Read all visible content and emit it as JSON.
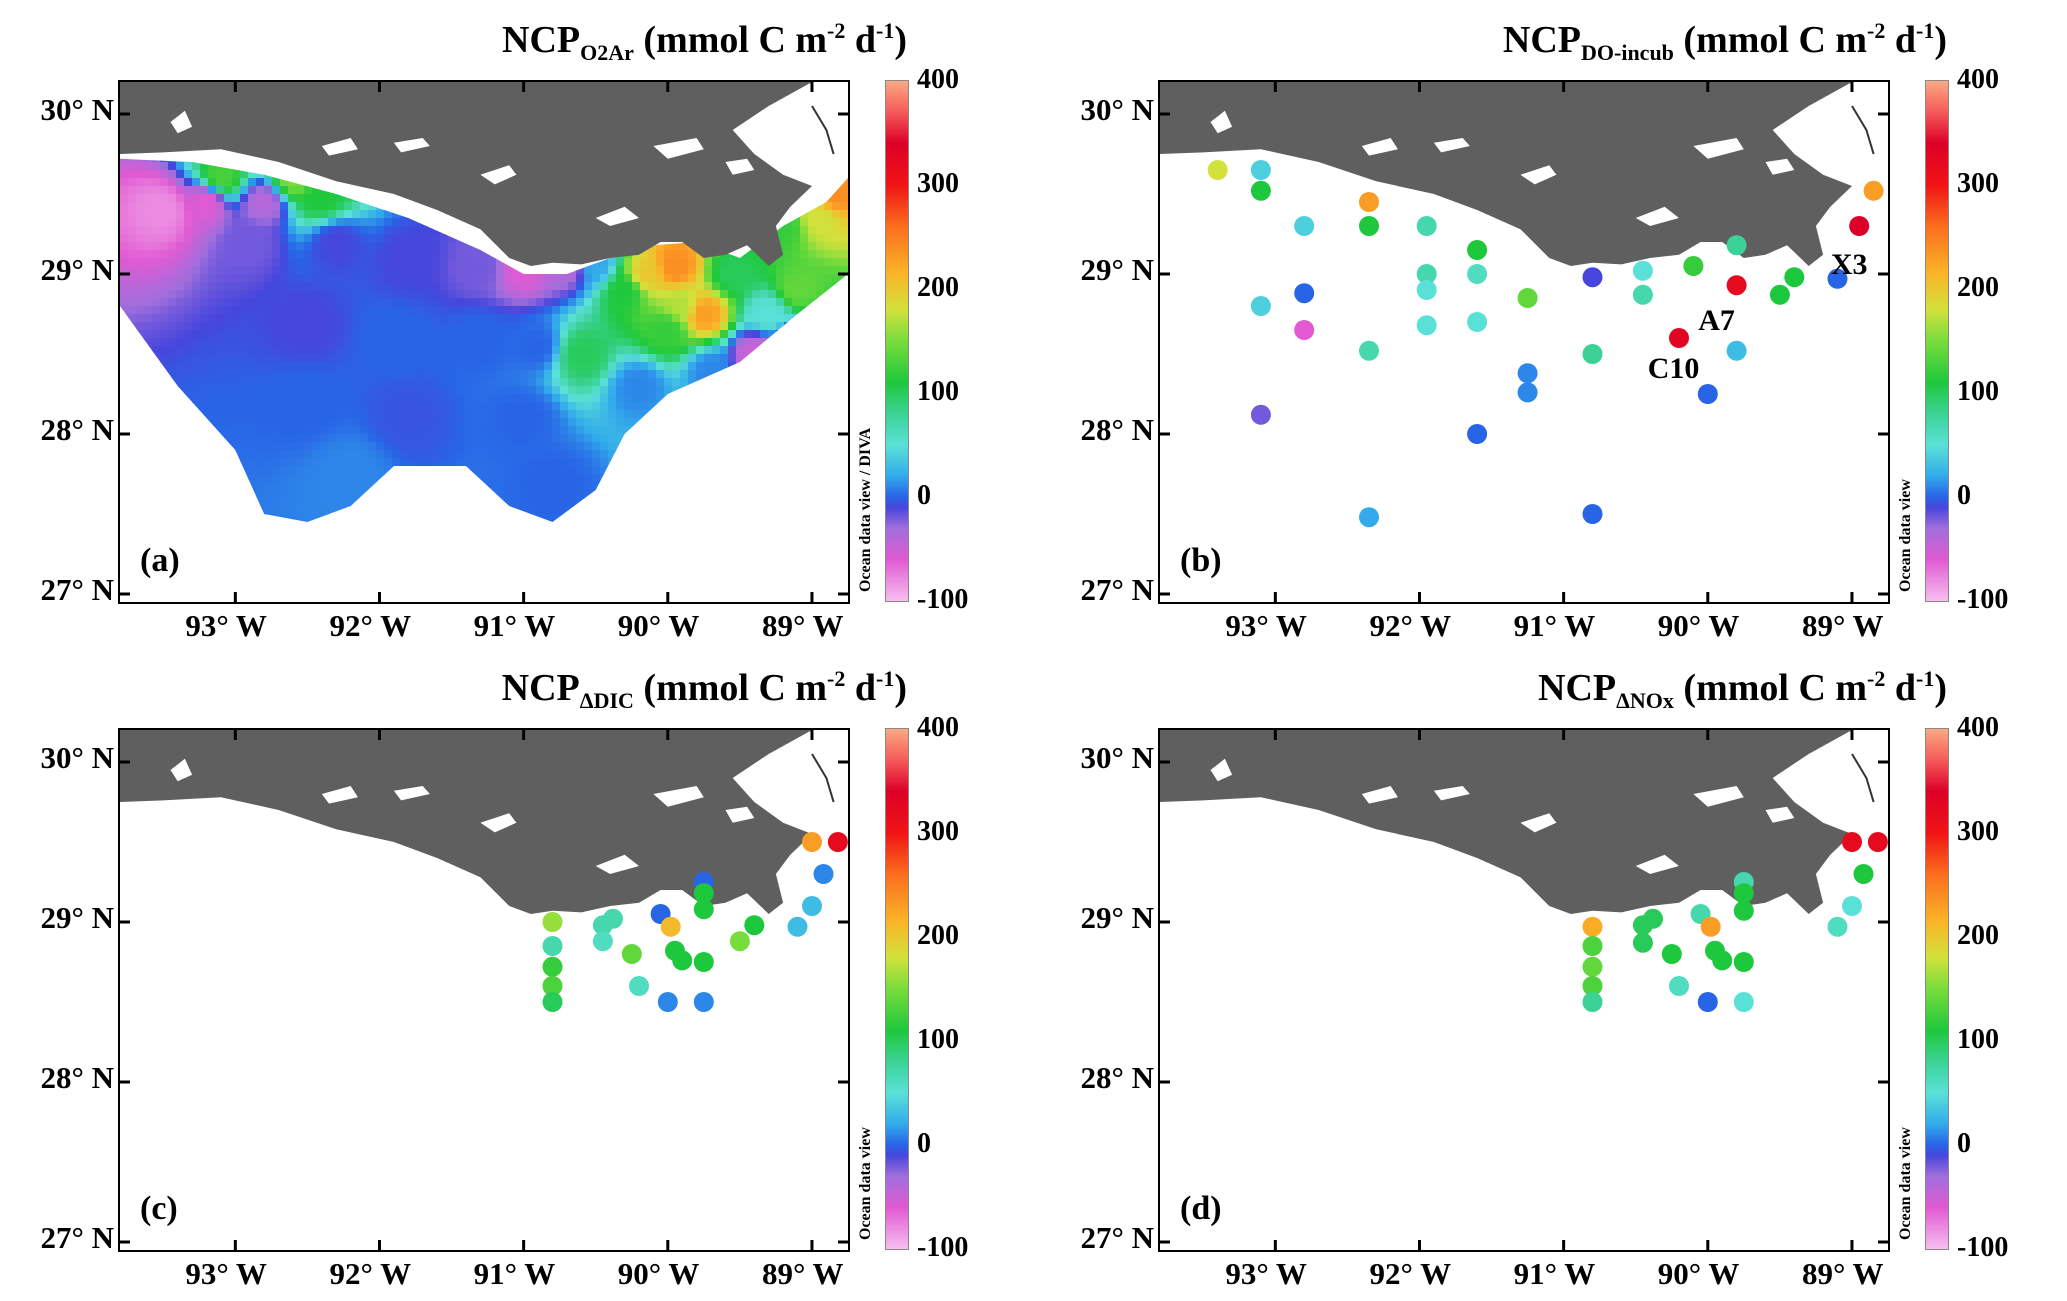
{
  "panels": [
    {
      "id": "a",
      "title_main": "NCP",
      "title_sub": "O2Ar",
      "title_unit_pre": " (mmol C m",
      "title_sup1": "-2",
      "title_mid": " d",
      "title_sup2": "-1",
      "title_end": ")",
      "label": "(a)",
      "cb_credit": "Ocean data view / DIVA",
      "station_labels": []
    },
    {
      "id": "b",
      "title_main": "NCP",
      "title_sub": "DO-incub",
      "title_unit_pre": " (mmol C m",
      "title_sup1": "-2",
      "title_mid": " d",
      "title_sup2": "-1",
      "title_end": ")",
      "label": "(b)",
      "cb_credit": "Ocean data view",
      "station_labels": [
        "C10",
        "A7",
        "X3"
      ]
    },
    {
      "id": "c",
      "title_main": "NCP",
      "title_sub": "ΔDIC",
      "title_unit_pre": " (mmol C m",
      "title_sup1": "-2",
      "title_mid": " d",
      "title_sup2": "-1",
      "title_end": ")",
      "label": "(c)",
      "cb_credit": "Ocean data view",
      "station_labels": []
    },
    {
      "id": "d",
      "title_main": "NCP",
      "title_sub": "ΔNOx",
      "title_unit_pre": " (mmol C m",
      "title_sup1": "-2",
      "title_mid": " d",
      "title_sup2": "-1",
      "title_end": ")",
      "label": "(d)",
      "cb_credit": "Ocean data view",
      "station_labels": []
    }
  ],
  "axes": {
    "lat_ticks": [
      "30° N",
      "29° N",
      "28° N",
      "27° N"
    ],
    "lon_ticks": [
      "93° W",
      "92° W",
      "91° W",
      "90° W",
      "89° W"
    ],
    "lat_range": [
      26.95,
      30.2
    ],
    "lon_range": [
      -93.8,
      -88.75
    ]
  },
  "colorbar": {
    "ticks": [
      "400",
      "300",
      "200",
      "100",
      "0",
      "-100"
    ],
    "range": [
      -100,
      400
    ]
  },
  "stations": {
    "b": [
      [
        -93.4,
        29.65,
        180
      ],
      [
        -93.1,
        29.65,
        40
      ],
      [
        -93.1,
        29.52,
        110
      ],
      [
        -92.8,
        29.3,
        40
      ],
      [
        -92.35,
        29.45,
        230
      ],
      [
        -92.35,
        29.3,
        110
      ],
      [
        -91.95,
        29.3,
        70
      ],
      [
        -91.6,
        29.15,
        110
      ],
      [
        -91.95,
        29.0,
        70
      ],
      [
        -91.6,
        29.0,
        60
      ],
      [
        -91.95,
        28.9,
        50
      ],
      [
        -91.6,
        28.7,
        50
      ],
      [
        -91.95,
        28.68,
        50
      ],
      [
        -92.8,
        28.88,
        0
      ],
      [
        -93.1,
        28.8,
        40
      ],
      [
        -92.8,
        28.65,
        -60
      ],
      [
        -92.35,
        28.52,
        70
      ],
      [
        -91.25,
        28.85,
        140
      ],
      [
        -91.25,
        28.38,
        10
      ],
      [
        -91.25,
        28.26,
        10
      ],
      [
        -90.8,
        28.98,
        -10
      ],
      [
        -90.45,
        29.02,
        50
      ],
      [
        -90.45,
        28.87,
        70
      ],
      [
        -90.1,
        29.05,
        120
      ],
      [
        -89.8,
        29.18,
        80
      ],
      [
        -89.8,
        28.93,
        320
      ],
      [
        -90.2,
        28.6,
        330
      ],
      [
        -89.8,
        28.52,
        30
      ],
      [
        -90.0,
        28.25,
        0
      ],
      [
        -90.8,
        28.5,
        80
      ],
      [
        -89.5,
        28.87,
        110
      ],
      [
        -89.4,
        28.98,
        110
      ],
      [
        -89.1,
        28.97,
        0
      ],
      [
        -88.95,
        29.3,
        340
      ],
      [
        -88.85,
        29.52,
        230
      ],
      [
        -93.1,
        28.12,
        -20
      ],
      [
        -91.6,
        28.0,
        0
      ],
      [
        -92.35,
        27.48,
        20
      ],
      [
        -90.8,
        27.5,
        0
      ]
    ],
    "c": [
      [
        -90.8,
        29.0,
        160
      ],
      [
        -90.8,
        28.85,
        70
      ],
      [
        -90.8,
        28.72,
        120
      ],
      [
        -90.8,
        28.6,
        130
      ],
      [
        -90.8,
        28.5,
        100
      ],
      [
        -90.45,
        28.98,
        70
      ],
      [
        -90.45,
        28.88,
        60
      ],
      [
        -90.38,
        29.02,
        70
      ],
      [
        -90.25,
        28.8,
        140
      ],
      [
        -90.2,
        28.6,
        60
      ],
      [
        -90.05,
        29.05,
        0
      ],
      [
        -89.98,
        28.97,
        210
      ],
      [
        -89.95,
        28.82,
        110
      ],
      [
        -89.9,
        28.76,
        110
      ],
      [
        -90.0,
        28.5,
        10
      ],
      [
        -89.75,
        29.25,
        0
      ],
      [
        -89.75,
        29.18,
        110
      ],
      [
        -89.75,
        29.08,
        110
      ],
      [
        -89.75,
        28.75,
        110
      ],
      [
        -89.75,
        28.5,
        10
      ],
      [
        -89.5,
        28.88,
        150
      ],
      [
        -89.4,
        28.98,
        110
      ],
      [
        -89.1,
        28.97,
        30
      ],
      [
        -89.0,
        29.1,
        30
      ],
      [
        -88.92,
        29.3,
        10
      ],
      [
        -89.0,
        29.5,
        230
      ],
      [
        -88.82,
        29.5,
        320
      ]
    ],
    "d": [
      [
        -90.8,
        28.97,
        220
      ],
      [
        -90.8,
        28.85,
        130
      ],
      [
        -90.8,
        28.72,
        140
      ],
      [
        -90.8,
        28.6,
        130
      ],
      [
        -90.8,
        28.5,
        80
      ],
      [
        -90.45,
        28.98,
        100
      ],
      [
        -90.45,
        28.87,
        100
      ],
      [
        -90.38,
        29.02,
        100
      ],
      [
        -90.25,
        28.8,
        110
      ],
      [
        -90.2,
        28.6,
        60
      ],
      [
        -90.05,
        29.05,
        70
      ],
      [
        -89.98,
        28.97,
        230
      ],
      [
        -89.95,
        28.82,
        110
      ],
      [
        -89.9,
        28.76,
        110
      ],
      [
        -90.0,
        28.5,
        0
      ],
      [
        -89.75,
        29.25,
        70
      ],
      [
        -89.75,
        29.18,
        110
      ],
      [
        -89.75,
        29.07,
        110
      ],
      [
        -89.75,
        28.75,
        110
      ],
      [
        -89.75,
        28.5,
        50
      ],
      [
        -89.1,
        28.97,
        60
      ],
      [
        -89.0,
        29.1,
        50
      ],
      [
        -88.92,
        29.3,
        110
      ],
      [
        -89.0,
        29.5,
        320
      ],
      [
        -88.82,
        29.5,
        320
      ]
    ]
  },
  "field_a": [
    [
      -93.5,
      29.4,
      -80
    ],
    [
      -93.2,
      29.45,
      -60
    ],
    [
      -92.8,
      29.45,
      -40
    ],
    [
      -93.1,
      29.6,
      130
    ],
    [
      -92.6,
      29.6,
      150
    ],
    [
      -92.4,
      29.48,
      110
    ],
    [
      -92.9,
      29.2,
      -20
    ],
    [
      -92.3,
      29.2,
      -10
    ],
    [
      -91.8,
      29.1,
      -10
    ],
    [
      -91.3,
      29.05,
      -20
    ],
    [
      -91.0,
      29.05,
      -60
    ],
    [
      -90.7,
      29.05,
      -40
    ],
    [
      -92.5,
      28.7,
      -10
    ],
    [
      -91.9,
      28.6,
      0
    ],
    [
      -91.3,
      28.6,
      0
    ],
    [
      -90.9,
      28.55,
      0
    ],
    [
      -92.5,
      28.2,
      0
    ],
    [
      -91.8,
      28.1,
      -5
    ],
    [
      -91.0,
      28.1,
      0
    ],
    [
      -92.2,
      27.75,
      10
    ],
    [
      -90.8,
      27.7,
      0
    ],
    [
      -90.3,
      28.9,
      110
    ],
    [
      -90.15,
      29.0,
      200
    ],
    [
      -89.95,
      29.05,
      240
    ],
    [
      -89.9,
      28.8,
      170
    ],
    [
      -89.75,
      28.75,
      230
    ],
    [
      -90.0,
      28.65,
      120
    ],
    [
      -90.6,
      28.5,
      100
    ],
    [
      -90.5,
      29.05,
      20
    ],
    [
      -89.55,
      29.0,
      100
    ],
    [
      -89.3,
      28.75,
      50
    ],
    [
      -89.1,
      28.9,
      140
    ],
    [
      -89.2,
      29.3,
      120
    ],
    [
      -88.95,
      29.35,
      180
    ],
    [
      -88.85,
      29.5,
      240
    ],
    [
      -89.4,
      28.5,
      -50
    ],
    [
      -89.1,
      28.55,
      -60
    ],
    [
      -89.7,
      28.4,
      10
    ],
    [
      -90.2,
      28.3,
      10
    ]
  ]
}
